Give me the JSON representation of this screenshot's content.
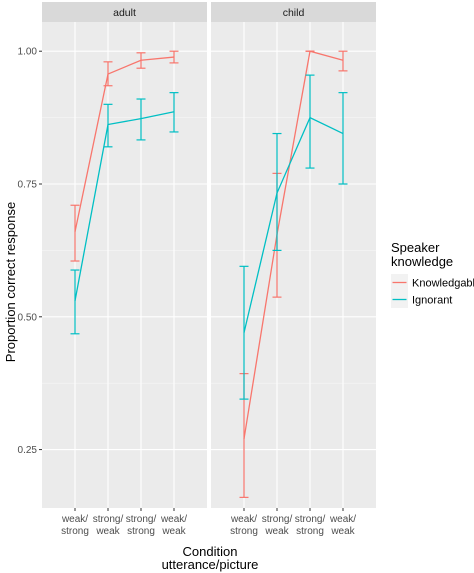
{
  "chart_data": {
    "type": "line",
    "xlabel": [
      "Condition",
      "utterance/picture"
    ],
    "ylabel": "Proportion correct response",
    "ylim": [
      0.14,
      1.055
    ],
    "yticks": [
      0.25,
      0.5,
      0.75,
      1.0
    ],
    "ytick_labels": [
      "0.25",
      "0.50",
      "0.75",
      "1.00"
    ],
    "categories": [
      [
        "weak/",
        "strong"
      ],
      [
        "strong/",
        "weak"
      ],
      [
        "strong/",
        "strong"
      ],
      [
        "weak/",
        "weak"
      ]
    ],
    "legend": {
      "title": [
        "Speaker",
        "knowledge"
      ],
      "placement": "right",
      "entries": [
        {
          "label": "Knowledgable",
          "color": "#F8766D"
        },
        {
          "label": "Ignorant",
          "color": "#00BFC4"
        }
      ]
    },
    "grid": true,
    "panels": [
      {
        "strip": "adult",
        "series": [
          {
            "name": "Knowledgable",
            "color": "#F8766D",
            "values": [
              0.66,
              0.957,
              0.983,
              0.989
            ],
            "lower": [
              0.605,
              0.935,
              0.968,
              0.978
            ],
            "upper": [
              0.71,
              0.98,
              0.997,
              1.0
            ]
          },
          {
            "name": "Ignorant",
            "color": "#00BFC4",
            "values": [
              0.53,
              0.862,
              0.873,
              0.886
            ],
            "lower": [
              0.468,
              0.82,
              0.833,
              0.848
            ],
            "upper": [
              0.588,
              0.9,
              0.91,
              0.922
            ]
          }
        ]
      },
      {
        "strip": "child",
        "series": [
          {
            "name": "Knowledgable",
            "color": "#F8766D",
            "values": [
              0.27,
              0.655,
              1.0,
              0.983
            ],
            "lower": [
              0.16,
              0.537,
              1.0,
              0.963
            ],
            "upper": [
              0.393,
              0.77,
              1.0,
              1.0
            ]
          },
          {
            "name": "Ignorant",
            "color": "#00BFC4",
            "values": [
              0.47,
              0.733,
              0.875,
              0.845
            ],
            "lower": [
              0.345,
              0.625,
              0.78,
              0.75
            ],
            "upper": [
              0.595,
              0.845,
              0.955,
              0.922
            ]
          }
        ]
      }
    ]
  }
}
